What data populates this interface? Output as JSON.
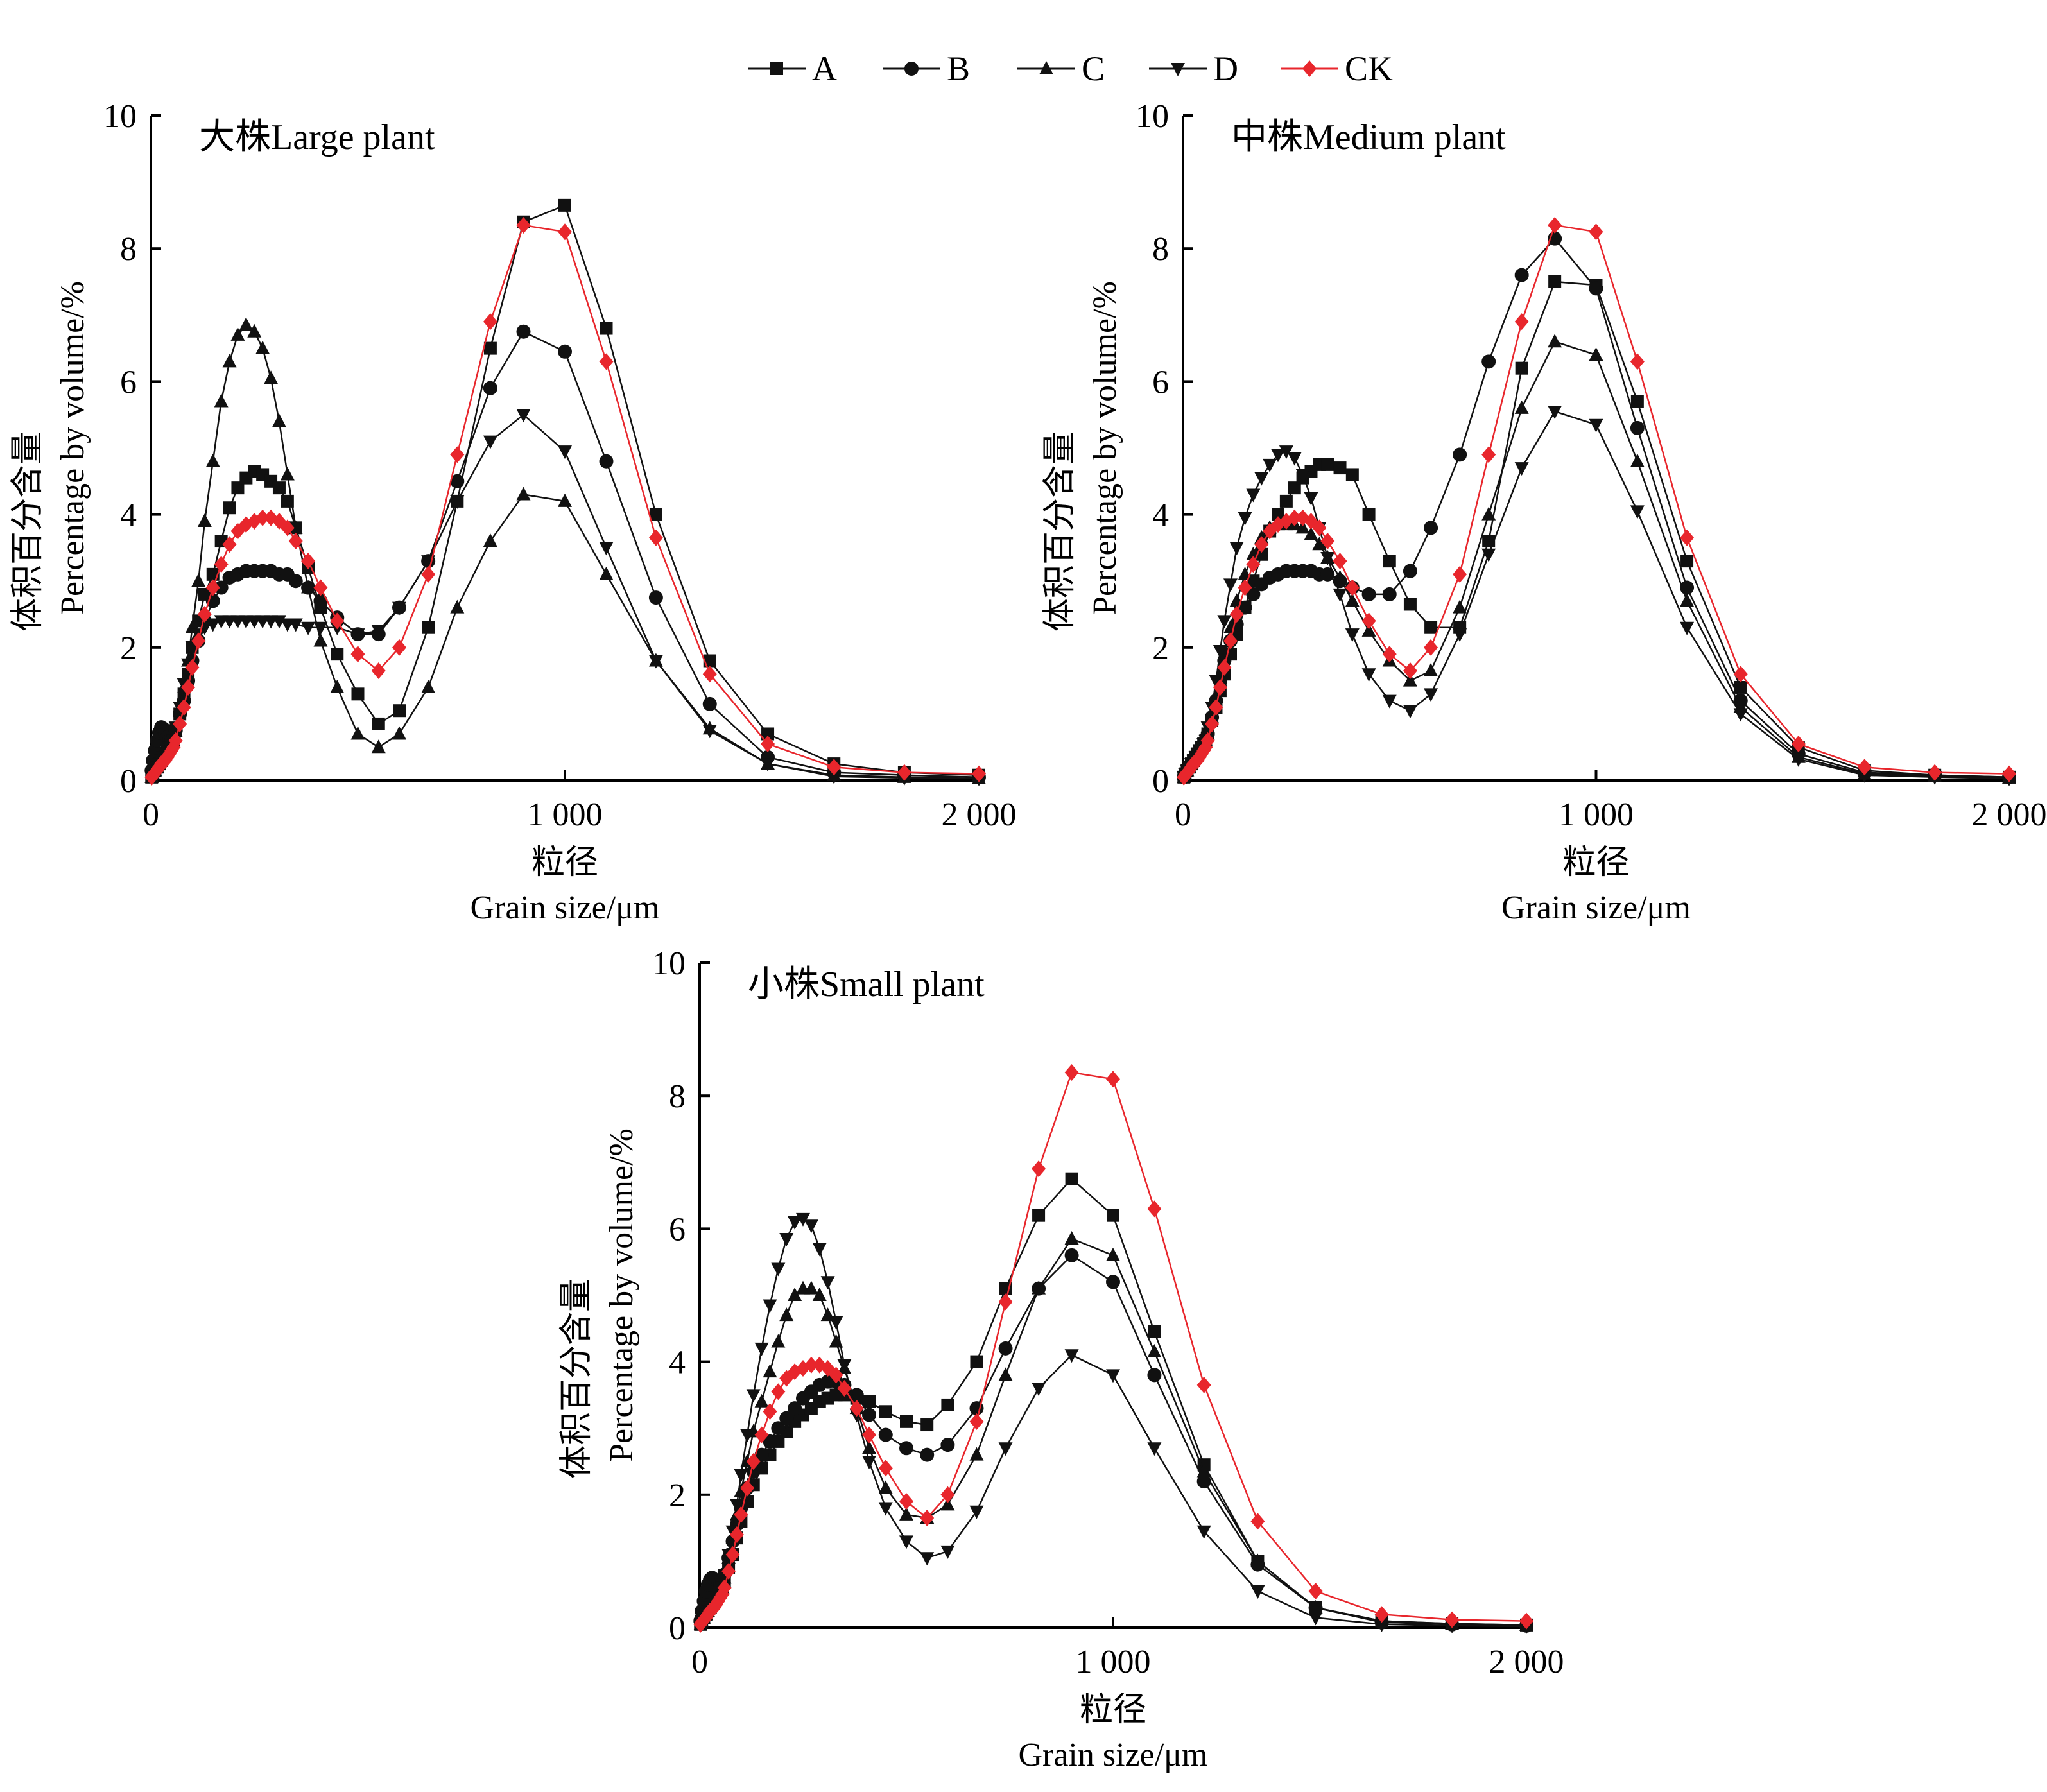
{
  "colors": {
    "black": "#111111",
    "red": "#e8262c"
  },
  "legend": [
    {
      "name": "A",
      "marker": "square",
      "color": "#111111"
    },
    {
      "name": "B",
      "marker": "circle",
      "color": "#111111"
    },
    {
      "name": "C",
      "marker": "triangle-up",
      "color": "#111111"
    },
    {
      "name": "D",
      "marker": "triangle-down",
      "color": "#111111"
    },
    {
      "name": "CK",
      "marker": "diamond",
      "color": "#e8262c"
    }
  ],
  "chart_data": [
    {
      "type": "line",
      "title": "大株Large plant",
      "ylabel_cn": "体积百分含量",
      "ylabel_en": "Percentage by volume/%",
      "xlabel_cn": "粒径",
      "xlabel_en": "Grain size/μm",
      "xlim": [
        0,
        2000
      ],
      "ylim": [
        0,
        10
      ],
      "xticks": [
        0,
        1000,
        2000
      ],
      "xtick_labels": [
        "0",
        "1 000",
        "2 000"
      ],
      "yticks": [
        0,
        2,
        4,
        6,
        8,
        10
      ],
      "ytick_labels": [
        "0",
        "2",
        "4",
        "6",
        "8",
        "10"
      ],
      "x": [
        2,
        5,
        10,
        15,
        20,
        25,
        30,
        35,
        40,
        45,
        50,
        55,
        60,
        70,
        80,
        90,
        100,
        115,
        130,
        150,
        170,
        190,
        210,
        230,
        250,
        270,
        290,
        310,
        330,
        350,
        380,
        410,
        450,
        500,
        550,
        600,
        670,
        740,
        820,
        900,
        1000,
        1100,
        1220,
        1350,
        1490,
        1650,
        1820,
        2000
      ],
      "series": [
        {
          "name": "A",
          "values": [
            0.05,
            0.1,
            0.15,
            0.2,
            0.25,
            0.3,
            0.35,
            0.4,
            0.45,
            0.5,
            0.55,
            0.65,
            0.75,
            1.0,
            1.3,
            1.6,
            2.0,
            2.4,
            2.8,
            3.1,
            3.6,
            4.1,
            4.4,
            4.55,
            4.65,
            4.6,
            4.5,
            4.4,
            4.2,
            3.8,
            3.2,
            2.6,
            1.9,
            1.3,
            0.85,
            1.05,
            2.3,
            4.2,
            6.5,
            8.4,
            8.65,
            6.8,
            4.0,
            1.8,
            0.7,
            0.25,
            0.12,
            0.08
          ]
        },
        {
          "name": "B",
          "values": [
            0.15,
            0.3,
            0.45,
            0.6,
            0.72,
            0.8,
            0.78,
            0.7,
            0.65,
            0.6,
            0.6,
            0.65,
            0.75,
            1.0,
            1.2,
            1.5,
            1.8,
            2.1,
            2.4,
            2.7,
            2.9,
            3.05,
            3.1,
            3.15,
            3.15,
            3.15,
            3.15,
            3.1,
            3.1,
            3.0,
            2.9,
            2.7,
            2.45,
            2.2,
            2.2,
            2.6,
            3.3,
            4.5,
            5.9,
            6.75,
            6.45,
            4.8,
            2.75,
            1.15,
            0.35,
            0.12,
            0.08,
            0.05
          ]
        },
        {
          "name": "C",
          "values": [
            0.05,
            0.1,
            0.15,
            0.2,
            0.25,
            0.3,
            0.35,
            0.4,
            0.45,
            0.5,
            0.55,
            0.6,
            0.75,
            1.05,
            1.4,
            1.8,
            2.3,
            3.0,
            3.9,
            4.8,
            5.7,
            6.3,
            6.7,
            6.85,
            6.75,
            6.5,
            6.05,
            5.4,
            4.6,
            3.8,
            2.9,
            2.1,
            1.4,
            0.7,
            0.5,
            0.7,
            1.4,
            2.6,
            3.6,
            4.3,
            4.2,
            3.1,
            1.8,
            0.78,
            0.25,
            0.08,
            0.05,
            0.03
          ]
        },
        {
          "name": "D",
          "values": [
            0.05,
            0.1,
            0.15,
            0.2,
            0.25,
            0.3,
            0.35,
            0.4,
            0.45,
            0.5,
            0.55,
            0.6,
            0.8,
            1.1,
            1.45,
            1.75,
            2.0,
            2.2,
            2.3,
            2.35,
            2.4,
            2.4,
            2.4,
            2.4,
            2.4,
            2.4,
            2.4,
            2.4,
            2.35,
            2.35,
            2.3,
            2.3,
            2.3,
            2.2,
            2.25,
            2.6,
            3.3,
            4.2,
            5.1,
            5.5,
            4.95,
            3.5,
            1.8,
            0.75,
            0.25,
            0.06,
            0.04,
            0.03
          ]
        },
        {
          "name": "CK",
          "values": [
            0.05,
            0.08,
            0.12,
            0.15,
            0.2,
            0.25,
            0.28,
            0.3,
            0.35,
            0.4,
            0.45,
            0.5,
            0.6,
            0.85,
            1.1,
            1.4,
            1.7,
            2.1,
            2.5,
            2.9,
            3.25,
            3.55,
            3.75,
            3.85,
            3.9,
            3.95,
            3.95,
            3.9,
            3.8,
            3.6,
            3.3,
            2.9,
            2.4,
            1.9,
            1.65,
            2.0,
            3.1,
            4.9,
            6.9,
            8.35,
            8.25,
            6.3,
            3.65,
            1.6,
            0.55,
            0.2,
            0.12,
            0.1
          ]
        }
      ]
    },
    {
      "type": "line",
      "title": "中株Medium plant",
      "ylabel_cn": "体积百分含量",
      "ylabel_en": "Percentage by volume/%",
      "xlabel_cn": "粒径",
      "xlabel_en": "Grain size/μm",
      "xlim": [
        0,
        2000
      ],
      "ylim": [
        0,
        10
      ],
      "xticks": [
        0,
        1000,
        2000
      ],
      "xtick_labels": [
        "0",
        "1 000",
        "2 000"
      ],
      "yticks": [
        0,
        2,
        4,
        6,
        8,
        10
      ],
      "ytick_labels": [
        "0",
        "2",
        "4",
        "6",
        "8",
        "10"
      ],
      "x": [
        2,
        5,
        10,
        15,
        20,
        25,
        30,
        35,
        40,
        45,
        50,
        55,
        60,
        70,
        80,
        90,
        100,
        115,
        130,
        150,
        170,
        190,
        210,
        230,
        250,
        270,
        290,
        310,
        330,
        350,
        380,
        410,
        450,
        500,
        550,
        600,
        670,
        740,
        820,
        900,
        1000,
        1100,
        1220,
        1350,
        1490,
        1650,
        1820,
        2000
      ],
      "series": [
        {
          "name": "A",
          "values": [
            0.05,
            0.1,
            0.15,
            0.2,
            0.25,
            0.3,
            0.35,
            0.4,
            0.45,
            0.5,
            0.55,
            0.6,
            0.7,
            0.9,
            1.1,
            1.35,
            1.6,
            1.9,
            2.2,
            2.6,
            3.0,
            3.4,
            3.75,
            4.0,
            4.2,
            4.4,
            4.55,
            4.65,
            4.75,
            4.75,
            4.7,
            4.6,
            4.0,
            3.3,
            2.65,
            2.3,
            2.3,
            3.6,
            6.2,
            7.5,
            7.45,
            5.7,
            3.3,
            1.4,
            0.5,
            0.15,
            0.08,
            0.05
          ]
        },
        {
          "name": "B",
          "values": [
            0.05,
            0.1,
            0.15,
            0.2,
            0.25,
            0.3,
            0.35,
            0.4,
            0.45,
            0.5,
            0.55,
            0.6,
            0.7,
            0.95,
            1.2,
            1.5,
            1.8,
            2.1,
            2.35,
            2.6,
            2.8,
            2.95,
            3.05,
            3.1,
            3.15,
            3.15,
            3.15,
            3.15,
            3.1,
            3.1,
            3.0,
            2.9,
            2.8,
            2.8,
            3.15,
            3.8,
            4.9,
            6.3,
            7.6,
            8.15,
            7.4,
            5.3,
            2.9,
            1.2,
            0.4,
            0.12,
            0.08,
            0.05
          ]
        },
        {
          "name": "C",
          "values": [
            0.05,
            0.1,
            0.15,
            0.2,
            0.25,
            0.3,
            0.35,
            0.4,
            0.45,
            0.5,
            0.55,
            0.6,
            0.7,
            0.95,
            1.25,
            1.55,
            1.9,
            2.3,
            2.7,
            3.1,
            3.4,
            3.65,
            3.8,
            3.85,
            3.85,
            3.85,
            3.8,
            3.7,
            3.55,
            3.35,
            3.05,
            2.7,
            2.25,
            1.8,
            1.5,
            1.65,
            2.6,
            4.0,
            5.6,
            6.6,
            6.4,
            4.8,
            2.7,
            1.1,
            0.35,
            0.1,
            0.06,
            0.04
          ]
        },
        {
          "name": "D",
          "values": [
            0.05,
            0.1,
            0.15,
            0.2,
            0.25,
            0.3,
            0.35,
            0.4,
            0.45,
            0.5,
            0.55,
            0.6,
            0.8,
            1.1,
            1.5,
            1.95,
            2.4,
            2.95,
            3.5,
            3.95,
            4.3,
            4.55,
            4.75,
            4.9,
            4.95,
            4.85,
            4.6,
            4.25,
            3.8,
            3.35,
            2.8,
            2.2,
            1.6,
            1.2,
            1.05,
            1.3,
            2.2,
            3.4,
            4.7,
            5.55,
            5.35,
            4.05,
            2.3,
            1.0,
            0.32,
            0.08,
            0.05,
            0.03
          ]
        },
        {
          "name": "CK",
          "values": [
            0.05,
            0.08,
            0.12,
            0.15,
            0.2,
            0.25,
            0.28,
            0.3,
            0.35,
            0.4,
            0.45,
            0.5,
            0.6,
            0.85,
            1.1,
            1.4,
            1.7,
            2.1,
            2.5,
            2.9,
            3.25,
            3.55,
            3.75,
            3.85,
            3.9,
            3.95,
            3.95,
            3.9,
            3.8,
            3.6,
            3.3,
            2.9,
            2.4,
            1.9,
            1.65,
            2.0,
            3.1,
            4.9,
            6.9,
            8.35,
            8.25,
            6.3,
            3.65,
            1.6,
            0.55,
            0.2,
            0.12,
            0.1
          ]
        }
      ]
    },
    {
      "type": "line",
      "title": "小株Small plant",
      "ylabel_cn": "体积百分含量",
      "ylabel_en": "Percentage by volume/%",
      "xlabel_cn": "粒径",
      "xlabel_en": "Grain size/μm",
      "xlim": [
        0,
        2000
      ],
      "ylim": [
        0,
        10
      ],
      "xticks": [
        0,
        1000,
        2000
      ],
      "xtick_labels": [
        "0",
        "1 000",
        "2 000"
      ],
      "yticks": [
        0,
        2,
        4,
        6,
        8,
        10
      ],
      "ytick_labels": [
        "0",
        "2",
        "4",
        "6",
        "8",
        "10"
      ],
      "x": [
        2,
        5,
        10,
        15,
        20,
        25,
        30,
        35,
        40,
        45,
        50,
        55,
        60,
        70,
        80,
        90,
        100,
        115,
        130,
        150,
        170,
        190,
        210,
        230,
        250,
        270,
        290,
        310,
        330,
        350,
        380,
        410,
        450,
        500,
        550,
        600,
        670,
        740,
        820,
        900,
        1000,
        1100,
        1220,
        1350,
        1490,
        1650,
        1820,
        2000
      ],
      "series": [
        {
          "name": "A",
          "values": [
            0.05,
            0.1,
            0.15,
            0.2,
            0.25,
            0.3,
            0.35,
            0.4,
            0.45,
            0.5,
            0.55,
            0.6,
            0.7,
            0.9,
            1.1,
            1.35,
            1.6,
            1.9,
            2.15,
            2.4,
            2.6,
            2.8,
            2.95,
            3.1,
            3.2,
            3.3,
            3.4,
            3.45,
            3.5,
            3.5,
            3.45,
            3.4,
            3.25,
            3.1,
            3.05,
            3.35,
            4.0,
            5.1,
            6.2,
            6.75,
            6.2,
            4.45,
            2.45,
            1.0,
            0.3,
            0.1,
            0.06,
            0.04
          ]
        },
        {
          "name": "B",
          "values": [
            0.1,
            0.25,
            0.4,
            0.55,
            0.65,
            0.72,
            0.75,
            0.72,
            0.68,
            0.65,
            0.65,
            0.7,
            0.8,
            1.05,
            1.3,
            1.55,
            1.8,
            2.1,
            2.35,
            2.6,
            2.8,
            3.0,
            3.15,
            3.3,
            3.45,
            3.55,
            3.65,
            3.7,
            3.7,
            3.65,
            3.5,
            3.2,
            2.9,
            2.7,
            2.6,
            2.75,
            3.3,
            4.2,
            5.1,
            5.6,
            5.2,
            3.8,
            2.2,
            0.95,
            0.3,
            0.08,
            0.05,
            0.03
          ]
        },
        {
          "name": "C",
          "values": [
            0.05,
            0.1,
            0.15,
            0.2,
            0.25,
            0.3,
            0.35,
            0.4,
            0.45,
            0.5,
            0.55,
            0.6,
            0.75,
            1.05,
            1.35,
            1.7,
            2.05,
            2.5,
            2.95,
            3.4,
            3.85,
            4.3,
            4.7,
            5.0,
            5.1,
            5.1,
            5.0,
            4.7,
            4.3,
            3.9,
            3.3,
            2.7,
            2.1,
            1.7,
            1.65,
            1.85,
            2.6,
            3.8,
            5.1,
            5.85,
            5.6,
            4.15,
            2.35,
            1.0,
            0.3,
            0.1,
            0.06,
            0.04
          ]
        },
        {
          "name": "D",
          "values": [
            0.05,
            0.1,
            0.15,
            0.2,
            0.25,
            0.3,
            0.35,
            0.4,
            0.45,
            0.5,
            0.55,
            0.6,
            0.8,
            1.1,
            1.45,
            1.85,
            2.3,
            2.9,
            3.5,
            4.2,
            4.85,
            5.4,
            5.85,
            6.1,
            6.15,
            6.05,
            5.7,
            5.2,
            4.6,
            3.95,
            3.2,
            2.5,
            1.8,
            1.3,
            1.05,
            1.15,
            1.75,
            2.7,
            3.6,
            4.1,
            3.8,
            2.7,
            1.45,
            0.55,
            0.15,
            0.05,
            0.03,
            0.02
          ]
        },
        {
          "name": "CK",
          "values": [
            0.05,
            0.08,
            0.12,
            0.15,
            0.2,
            0.25,
            0.28,
            0.3,
            0.35,
            0.4,
            0.45,
            0.5,
            0.6,
            0.85,
            1.1,
            1.4,
            1.7,
            2.1,
            2.5,
            2.9,
            3.25,
            3.55,
            3.75,
            3.85,
            3.9,
            3.95,
            3.95,
            3.9,
            3.8,
            3.6,
            3.3,
            2.9,
            2.4,
            1.9,
            1.65,
            2.0,
            3.1,
            4.9,
            6.9,
            8.35,
            8.25,
            6.3,
            3.65,
            1.6,
            0.55,
            0.2,
            0.12,
            0.1
          ]
        }
      ]
    }
  ]
}
